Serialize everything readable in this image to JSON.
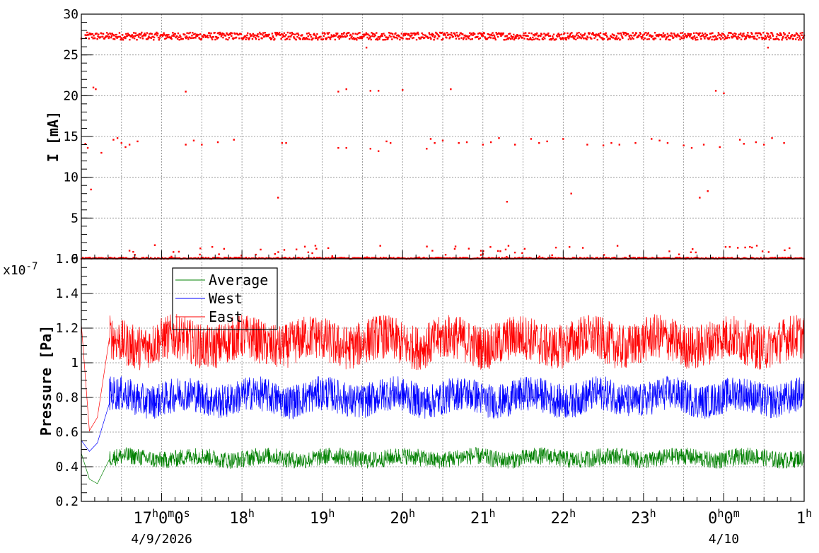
{
  "chart_data": [
    {
      "type": "scatter",
      "ylabel": "I [mA]",
      "ylim": [
        0,
        30
      ],
      "yticks": [
        0,
        5,
        10,
        15,
        20,
        25,
        30
      ],
      "xlim_hours": [
        16.0,
        25.0
      ],
      "grid": true,
      "series": [
        {
          "color": "#ff0000",
          "baseline_levels": [
            27.3,
            0.0
          ],
          "outliers": [
            [
              16.05,
              14.1
            ],
            [
              16.08,
              13.6
            ],
            [
              16.12,
              8.5
            ],
            [
              16.15,
              21.0
            ],
            [
              16.18,
              20.8
            ],
            [
              16.25,
              13.0
            ],
            [
              16.4,
              14.6
            ],
            [
              16.45,
              14.8
            ],
            [
              16.5,
              14.2
            ],
            [
              16.55,
              13.7
            ],
            [
              16.6,
              14.0
            ],
            [
              16.7,
              14.4
            ],
            [
              17.3,
              20.5
            ],
            [
              17.3,
              14.0
            ],
            [
              17.4,
              14.5
            ],
            [
              17.5,
              14.0
            ],
            [
              17.7,
              14.3
            ],
            [
              17.9,
              14.6
            ],
            [
              18.45,
              7.5
            ],
            [
              18.5,
              14.2
            ],
            [
              18.55,
              14.2
            ],
            [
              19.2,
              20.5
            ],
            [
              19.3,
              20.8
            ],
            [
              19.2,
              13.6
            ],
            [
              19.3,
              13.6
            ],
            [
              19.6,
              20.6
            ],
            [
              19.7,
              20.6
            ],
            [
              19.6,
              13.5
            ],
            [
              19.7,
              13.2
            ],
            [
              19.8,
              14.4
            ],
            [
              19.85,
              14.2
            ],
            [
              20.0,
              20.7
            ],
            [
              20.3,
              13.5
            ],
            [
              20.35,
              14.7
            ],
            [
              20.4,
              14.2
            ],
            [
              20.5,
              14.5
            ],
            [
              20.6,
              20.8
            ],
            [
              20.7,
              14.2
            ],
            [
              20.8,
              14.3
            ],
            [
              21.0,
              14.0
            ],
            [
              21.1,
              14.3
            ],
            [
              21.2,
              14.8
            ],
            [
              21.3,
              7.0
            ],
            [
              21.4,
              14.0
            ],
            [
              21.6,
              14.7
            ],
            [
              21.7,
              14.2
            ],
            [
              21.8,
              14.4
            ],
            [
              22.0,
              14.7
            ],
            [
              22.1,
              8.0
            ],
            [
              22.3,
              14.0
            ],
            [
              22.5,
              13.9
            ],
            [
              22.6,
              14.2
            ],
            [
              22.7,
              14.0
            ],
            [
              22.9,
              14.2
            ],
            [
              23.1,
              14.7
            ],
            [
              23.2,
              14.5
            ],
            [
              23.3,
              14.2
            ],
            [
              23.5,
              13.9
            ],
            [
              23.6,
              13.6
            ],
            [
              23.7,
              7.5
            ],
            [
              23.75,
              14.0
            ],
            [
              23.8,
              8.3
            ],
            [
              23.9,
              20.6
            ],
            [
              23.95,
              13.7
            ],
            [
              24.0,
              20.3
            ],
            [
              24.2,
              14.6
            ],
            [
              24.25,
              14.1
            ],
            [
              24.4,
              14.3
            ],
            [
              24.5,
              14.0
            ],
            [
              24.6,
              14.8
            ],
            [
              24.75,
              14.2
            ],
            [
              24.55,
              25.9
            ],
            [
              19.55,
              25.9
            ],
            [
              16.0,
              27.0
            ]
          ]
        }
      ]
    },
    {
      "type": "line",
      "ylabel": "Pressure [Pa]",
      "y_multiplier": "x10",
      "y_exponent": "-7",
      "ylim": [
        0.2,
        1.6
      ],
      "yticks": [
        0.2,
        0.4,
        0.6,
        0.8,
        1.0,
        1.2,
        1.4,
        1.6
      ],
      "ytick_labels": [
        "0.2",
        "0.4",
        "0.6",
        "0.8",
        "1",
        "1.2",
        "1.4",
        "1.6"
      ],
      "xlim_hours": [
        16.0,
        25.0
      ],
      "grid": true,
      "legend_position": "top-left",
      "series": [
        {
          "name": "Average",
          "color": "#008000",
          "mean": 0.45,
          "spread": 0.05,
          "startup": [
            [
              16.0,
              0.45
            ],
            [
              16.1,
              0.35
            ],
            [
              16.2,
              0.32
            ],
            [
              16.35,
              0.45
            ]
          ]
        },
        {
          "name": "West",
          "color": "#0000ff",
          "mean": 0.8,
          "spread": 0.1,
          "startup": [
            [
              16.0,
              0.6
            ],
            [
              16.1,
              0.45
            ],
            [
              16.2,
              0.5
            ],
            [
              16.35,
              0.8
            ]
          ]
        },
        {
          "name": "East",
          "color": "#ff0000",
          "mean": 1.12,
          "spread": 0.13,
          "startup": [
            [
              16.0,
              1.25
            ],
            [
              16.1,
              0.55
            ],
            [
              16.2,
              0.75
            ],
            [
              16.35,
              1.1
            ]
          ]
        }
      ]
    }
  ],
  "x_axis": {
    "ticks": [
      {
        "hour": 17,
        "label": "17",
        "sup_h": "h",
        "mid": "0",
        "sup_m": "m",
        "mid2": "0",
        "sup_s": "s"
      },
      {
        "hour": 18,
        "label": "18",
        "sup_h": "h"
      },
      {
        "hour": 19,
        "label": "19",
        "sup_h": "h"
      },
      {
        "hour": 20,
        "label": "20",
        "sup_h": "h"
      },
      {
        "hour": 21,
        "label": "21",
        "sup_h": "h"
      },
      {
        "hour": 22,
        "label": "22",
        "sup_h": "h"
      },
      {
        "hour": 23,
        "label": "23",
        "sup_h": "h"
      },
      {
        "hour": 24,
        "label": "0",
        "sup_h": "h",
        "mid": "0",
        "sup_m": "m"
      },
      {
        "hour": 25,
        "label": "1",
        "sup_h": "h"
      }
    ],
    "dates": [
      {
        "hour": 17,
        "label": "4/9/2026"
      },
      {
        "hour": 24,
        "label": "4/10"
      }
    ]
  }
}
